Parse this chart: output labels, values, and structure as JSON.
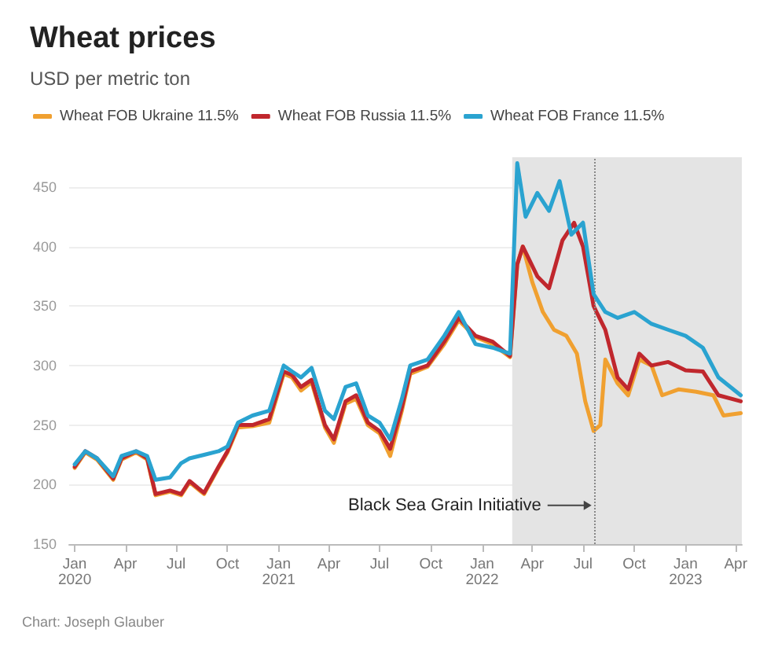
{
  "chart_data": {
    "type": "line",
    "title": "Wheat prices",
    "subtitle": "USD per metric ton",
    "legend": "top left",
    "grid": "y",
    "marker": "none",
    "line_style": "solid",
    "xlim": [
      "2019-12-22",
      "2023-04-12"
    ],
    "xticks": [
      {
        "value": "2020-01-01",
        "label": "Jan\n2020"
      },
      {
        "value": "2020-04-01",
        "label": "Apr"
      },
      {
        "value": "2020-07-01",
        "label": "Jul"
      },
      {
        "value": "2020-10-01",
        "label": "Oct"
      },
      {
        "value": "2021-01-01",
        "label": "Jan\n2021"
      },
      {
        "value": "2021-04-01",
        "label": "Apr"
      },
      {
        "value": "2021-07-01",
        "label": "Jul"
      },
      {
        "value": "2021-10-01",
        "label": "Oct"
      },
      {
        "value": "2022-01-01",
        "label": "Jan\n2022"
      },
      {
        "value": "2022-04-01",
        "label": "Apr"
      },
      {
        "value": "2022-07-01",
        "label": "Jul"
      },
      {
        "value": "2022-10-01",
        "label": "Oct"
      },
      {
        "value": "2023-01-01",
        "label": "Jan\n2023"
      },
      {
        "value": "2023-04-01",
        "label": "Apr"
      }
    ],
    "ylim": [
      150,
      475
    ],
    "yticks": [
      150,
      200,
      250,
      300,
      350,
      400,
      450
    ],
    "bands": [
      {
        "axis": "x",
        "from": "2022-02-24",
        "to": "2023-04-12",
        "color": "#e4e4e4"
      }
    ],
    "ref_lines": [
      {
        "axis": "x",
        "value": "2022-07-22",
        "label": "Black Sea Grain Initiative",
        "color": "#888888",
        "line_style": "dotted"
      }
    ],
    "annotations": [
      "Chart: Joseph Glauber"
    ],
    "series": [
      {
        "name": "Wheat FOB Ukraine 11.5%",
        "color": "#f0a030",
        "x": [
          "2020-01-01",
          "2020-01-20",
          "2020-02-10",
          "2020-03-10",
          "2020-03-25",
          "2020-04-20",
          "2020-05-10",
          "2020-05-25",
          "2020-06-20",
          "2020-07-10",
          "2020-07-25",
          "2020-08-20",
          "2020-09-15",
          "2020-10-01",
          "2020-10-20",
          "2020-11-15",
          "2020-12-15",
          "2021-01-10",
          "2021-01-25",
          "2021-02-10",
          "2021-03-01",
          "2021-03-25",
          "2021-04-10",
          "2021-05-01",
          "2021-05-20",
          "2021-06-10",
          "2021-07-01",
          "2021-07-20",
          "2021-08-10",
          "2021-08-25",
          "2021-09-25",
          "2021-10-25",
          "2021-11-20",
          "2021-12-20",
          "2022-01-20",
          "2022-02-20",
          "2022-03-05",
          "2022-03-15",
          "2022-04-01",
          "2022-04-20",
          "2022-05-10",
          "2022-06-01",
          "2022-06-20",
          "2022-07-05",
          "2022-07-20",
          "2022-08-01",
          "2022-08-10",
          "2022-09-01",
          "2022-09-20",
          "2022-10-10",
          "2022-11-01",
          "2022-11-20",
          "2022-12-20",
          "2023-01-20",
          "2023-02-20",
          "2023-03-10",
          "2023-04-10"
        ],
        "values": [
          214,
          227,
          221,
          204,
          221,
          227,
          221,
          191,
          194,
          191,
          202,
          192,
          214,
          227,
          248,
          249,
          252,
          293,
          290,
          279,
          286,
          248,
          235,
          268,
          272,
          250,
          243,
          224,
          262,
          293,
          299,
          318,
          338,
          324,
          318,
          307,
          385,
          400,
          370,
          345,
          330,
          325,
          310,
          270,
          245,
          250,
          305,
          285,
          275,
          305,
          300,
          275,
          280,
          278,
          275,
          258,
          260
        ]
      },
      {
        "name": "Wheat FOB Russia 11.5%",
        "color": "#c0272d",
        "x": [
          "2020-01-01",
          "2020-01-20",
          "2020-02-10",
          "2020-03-10",
          "2020-03-25",
          "2020-04-20",
          "2020-05-10",
          "2020-05-25",
          "2020-06-20",
          "2020-07-10",
          "2020-07-25",
          "2020-08-20",
          "2020-09-15",
          "2020-10-01",
          "2020-10-20",
          "2020-11-15",
          "2020-12-15",
          "2021-01-10",
          "2021-01-25",
          "2021-02-10",
          "2021-03-01",
          "2021-03-25",
          "2021-04-10",
          "2021-05-01",
          "2021-05-20",
          "2021-06-10",
          "2021-07-01",
          "2021-07-20",
          "2021-08-10",
          "2021-08-25",
          "2021-09-25",
          "2021-10-25",
          "2021-11-20",
          "2021-12-20",
          "2022-01-20",
          "2022-02-20",
          "2022-03-05",
          "2022-03-15",
          "2022-04-10",
          "2022-05-01",
          "2022-05-25",
          "2022-06-15",
          "2022-07-01",
          "2022-07-20",
          "2022-08-10",
          "2022-09-01",
          "2022-09-20",
          "2022-10-10",
          "2022-11-01",
          "2022-12-01",
          "2023-01-01",
          "2023-02-01",
          "2023-03-01",
          "2023-04-10"
        ],
        "values": [
          215,
          228,
          222,
          205,
          222,
          228,
          222,
          192,
          195,
          192,
          203,
          193,
          215,
          228,
          250,
          250,
          255,
          295,
          292,
          282,
          288,
          250,
          238,
          270,
          275,
          252,
          245,
          230,
          265,
          295,
          300,
          320,
          340,
          325,
          320,
          308,
          385,
          400,
          375,
          365,
          405,
          420,
          400,
          350,
          330,
          290,
          280,
          310,
          300,
          303,
          296,
          295,
          275,
          270
        ]
      },
      {
        "name": "Wheat FOB France 11.5%",
        "color": "#2aa3d0",
        "x": [
          "2020-01-01",
          "2020-01-20",
          "2020-02-10",
          "2020-03-10",
          "2020-03-25",
          "2020-04-20",
          "2020-05-10",
          "2020-05-25",
          "2020-06-20",
          "2020-07-10",
          "2020-07-25",
          "2020-08-20",
          "2020-09-15",
          "2020-10-01",
          "2020-10-20",
          "2020-11-15",
          "2020-12-15",
          "2021-01-10",
          "2021-01-25",
          "2021-02-10",
          "2021-03-01",
          "2021-03-25",
          "2021-04-10",
          "2021-05-01",
          "2021-05-20",
          "2021-06-10",
          "2021-07-01",
          "2021-07-20",
          "2021-08-10",
          "2021-08-25",
          "2021-09-25",
          "2021-10-25",
          "2021-11-20",
          "2021-12-20",
          "2022-01-20",
          "2022-02-20",
          "2022-03-05",
          "2022-03-20",
          "2022-04-10",
          "2022-05-01",
          "2022-05-20",
          "2022-06-10",
          "2022-07-01",
          "2022-07-20",
          "2022-08-10",
          "2022-09-01",
          "2022-10-01",
          "2022-11-01",
          "2022-12-01",
          "2023-01-01",
          "2023-02-01",
          "2023-03-01",
          "2023-04-10"
        ],
        "values": [
          217,
          228,
          222,
          207,
          224,
          228,
          224,
          204,
          206,
          218,
          222,
          225,
          228,
          232,
          252,
          258,
          262,
          300,
          295,
          290,
          298,
          262,
          255,
          282,
          285,
          258,
          252,
          238,
          272,
          300,
          305,
          325,
          345,
          318,
          315,
          310,
          470,
          425,
          445,
          430,
          455,
          410,
          420,
          360,
          345,
          340,
          345,
          335,
          330,
          325,
          315,
          290,
          275
        ]
      }
    ]
  }
}
